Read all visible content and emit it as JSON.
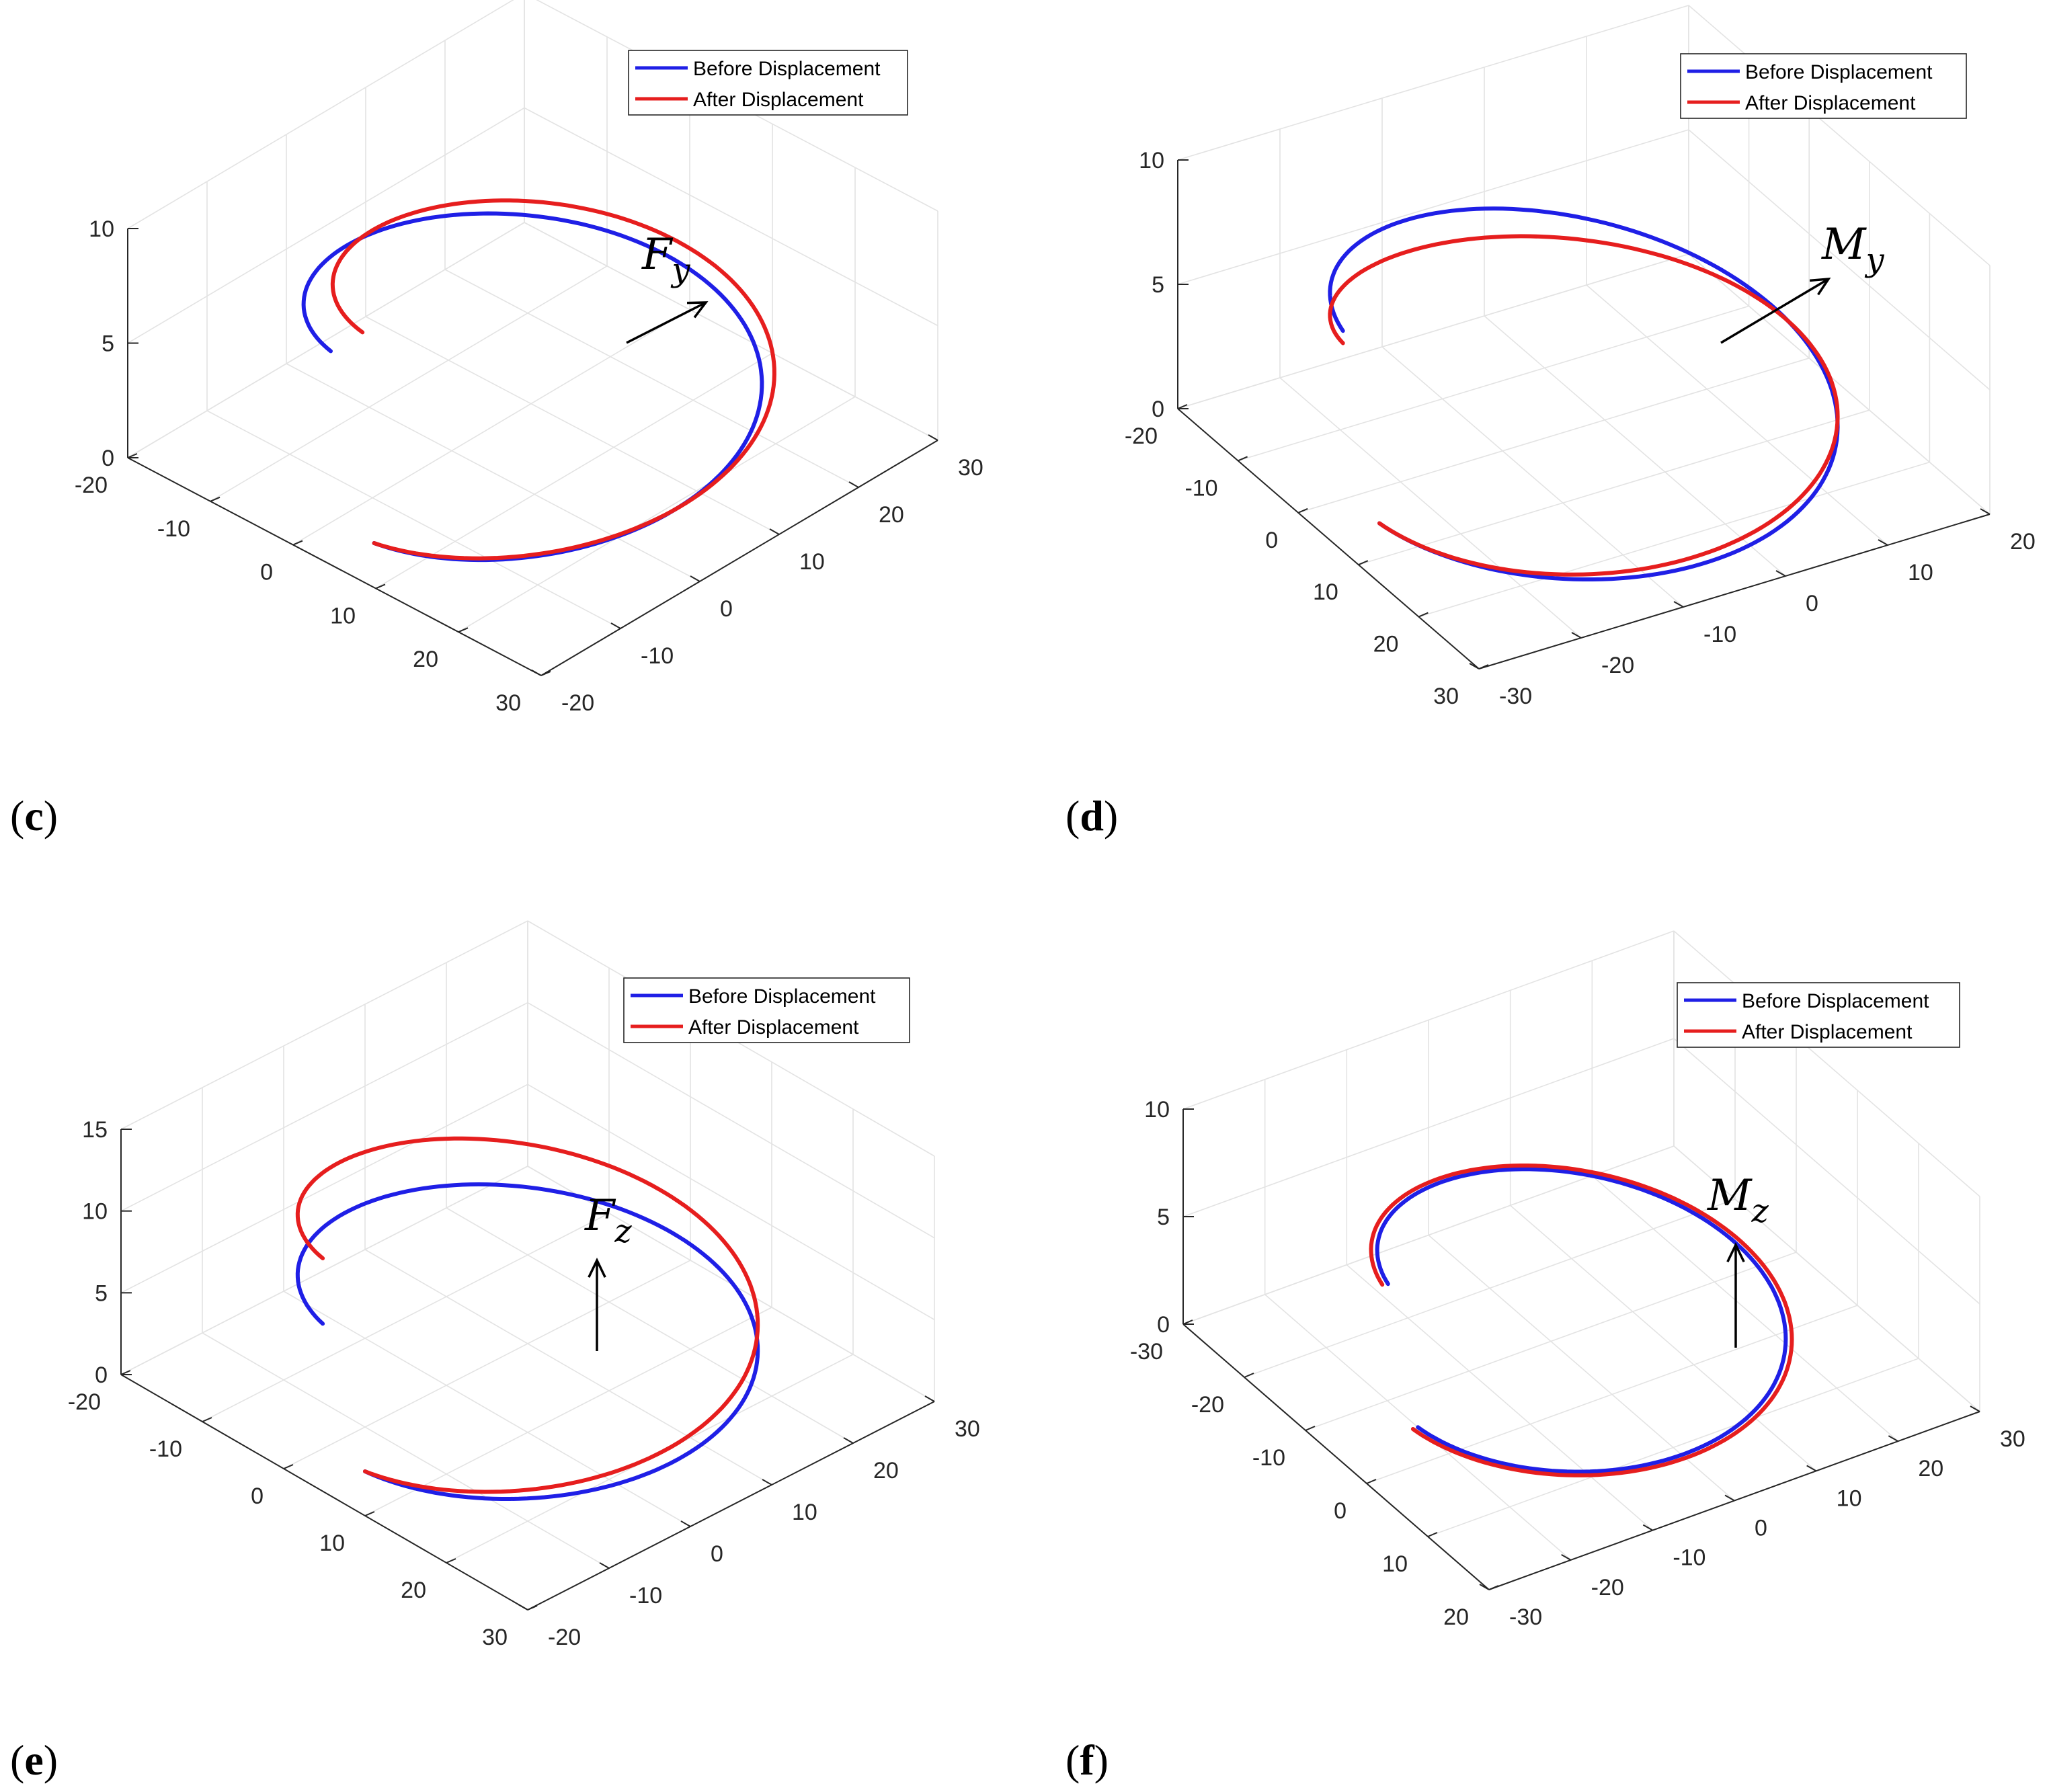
{
  "colors": {
    "before": "#1f1fe6",
    "after": "#e61e1e",
    "arrow": "#000000",
    "grid": "#e3e3e3",
    "axis": "#262626"
  },
  "chart_data": [
    {
      "type": "line3d",
      "panel": "c",
      "force": {
        "main": "F",
        "sub": "y",
        "direction": "+y"
      },
      "legend": {
        "placement": "top-right"
      },
      "grid": true,
      "xlim": [
        -20,
        30
      ],
      "ylim": [
        -20,
        30
      ],
      "zlim": [
        0,
        10
      ],
      "xticks": [
        "-20",
        "-10",
        "0",
        "10",
        "20",
        "30"
      ],
      "yticks": [
        "-20",
        "-10",
        "0",
        "10",
        "20",
        "30"
      ],
      "zticks": [
        "0",
        "5",
        "10"
      ],
      "series": [
        {
          "name": "Before Displacement",
          "color": "before",
          "center": [
            5,
            5
          ],
          "radius": 20,
          "z0": 0,
          "z1": 7
        },
        {
          "name": "After Displacement",
          "color": "after",
          "center": [
            5,
            5
          ],
          "radius": 20,
          "z0": 0,
          "z1": 7,
          "shift": [
            0,
            4,
            0
          ]
        }
      ]
    },
    {
      "type": "line3d",
      "panel": "d",
      "force": {
        "main": "M",
        "sub": "y",
        "direction": "+y"
      },
      "legend": {
        "placement": "top-right"
      },
      "grid": true,
      "xlim": [
        -20,
        20
      ],
      "ylim": [
        -30,
        20
      ],
      "zlim": [
        0,
        10
      ],
      "xticks": [
        "-20",
        "-10",
        "0",
        "10",
        "20",
        "30"
      ],
      "yticks": [
        "-30",
        "-20",
        "-10",
        "0",
        "10",
        "20"
      ],
      "zticks": [
        "0",
        "5",
        "10"
      ],
      "series": [
        {
          "name": "Before Displacement",
          "color": "before",
          "center": [
            0,
            -5
          ],
          "radius": 20,
          "z0": 0,
          "z1": 6
        },
        {
          "name": "After Displacement",
          "color": "after",
          "center": [
            0,
            -5
          ],
          "radius": 20,
          "z0": 0,
          "z1": 6,
          "tilt": 0.08
        }
      ]
    },
    {
      "type": "line3d",
      "panel": "e",
      "force": {
        "main": "F",
        "sub": "z",
        "direction": "+z"
      },
      "legend": {
        "placement": "top-right"
      },
      "grid": true,
      "xlim": [
        -20,
        30
      ],
      "ylim": [
        -20,
        30
      ],
      "zlim": [
        0,
        15
      ],
      "xticks": [
        "-20",
        "-10",
        "0",
        "10",
        "20",
        "30"
      ],
      "yticks": [
        "-20",
        "-10",
        "0",
        "10",
        "20",
        "30"
      ],
      "zticks": [
        "0",
        "5",
        "10",
        "15"
      ],
      "series": [
        {
          "name": "Before Displacement",
          "color": "before",
          "center": [
            5,
            5
          ],
          "radius": 20,
          "z0": 0,
          "z1": 7
        },
        {
          "name": "After Displacement",
          "color": "after",
          "center": [
            5,
            5
          ],
          "radius": 20,
          "z0": 0,
          "z1": 11
        }
      ]
    },
    {
      "type": "line3d",
      "panel": "f",
      "force": {
        "main": "M",
        "sub": "z",
        "direction": "+z"
      },
      "legend": {
        "placement": "top-right"
      },
      "grid": true,
      "xlim": [
        -30,
        20
      ],
      "ylim": [
        -30,
        30
      ],
      "zlim": [
        0,
        10
      ],
      "xticks": [
        "-30",
        "-20",
        "-10",
        "0",
        "10",
        "20"
      ],
      "yticks": [
        "-30",
        "-20",
        "-10",
        "0",
        "10",
        "20",
        "30"
      ],
      "zticks": [
        "0",
        "5",
        "10"
      ],
      "series": [
        {
          "name": "Before Displacement",
          "color": "before",
          "center": [
            -5,
            0
          ],
          "radius": 20,
          "z0": 0,
          "z1": 5
        },
        {
          "name": "After Displacement",
          "color": "after",
          "center": [
            -5,
            0
          ],
          "radius": 20.6,
          "z0": 0,
          "z1": 5
        }
      ]
    }
  ]
}
